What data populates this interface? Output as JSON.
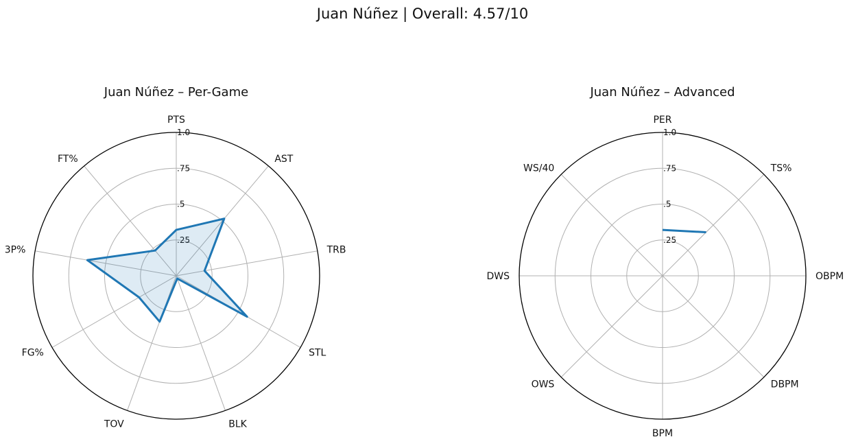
{
  "figure": {
    "suptitle": "Juan Núñez | Overall: 4.57/10"
  },
  "chart_data": [
    {
      "type": "radar",
      "title": "Juan Núñez – Per-Game",
      "categories": [
        "PTS",
        "AST",
        "TRB",
        "STL",
        "BLK",
        "TOV",
        "FG%",
        "3P%",
        "FT%"
      ],
      "values": [
        0.32,
        0.52,
        0.2,
        0.57,
        0.02,
        0.34,
        0.3,
        0.63,
        0.23
      ],
      "rlim": [
        0,
        1.0
      ],
      "rticks": [
        0.25,
        0.5,
        0.75,
        1.0
      ],
      "rtick_labels": [
        ".25",
        ".5",
        ".75",
        "1.0"
      ],
      "filled": true,
      "closed": true,
      "color": "#1f77b4"
    },
    {
      "type": "radar",
      "title": "Juan Núñez – Advanced",
      "categories": [
        "PER",
        "TS%",
        "OBPM",
        "DBPM",
        "BPM",
        "OWS",
        "DWS",
        "WS/40"
      ],
      "values": [
        0.32,
        0.43,
        null,
        null,
        null,
        null,
        null,
        null
      ],
      "rlim": [
        0,
        1.0
      ],
      "rticks": [
        0.25,
        0.5,
        0.75,
        1.0
      ],
      "rtick_labels": [
        ".25",
        ".5",
        ".75",
        "1.0"
      ],
      "filled": false,
      "closed": false,
      "color": "#1f77b4"
    }
  ]
}
